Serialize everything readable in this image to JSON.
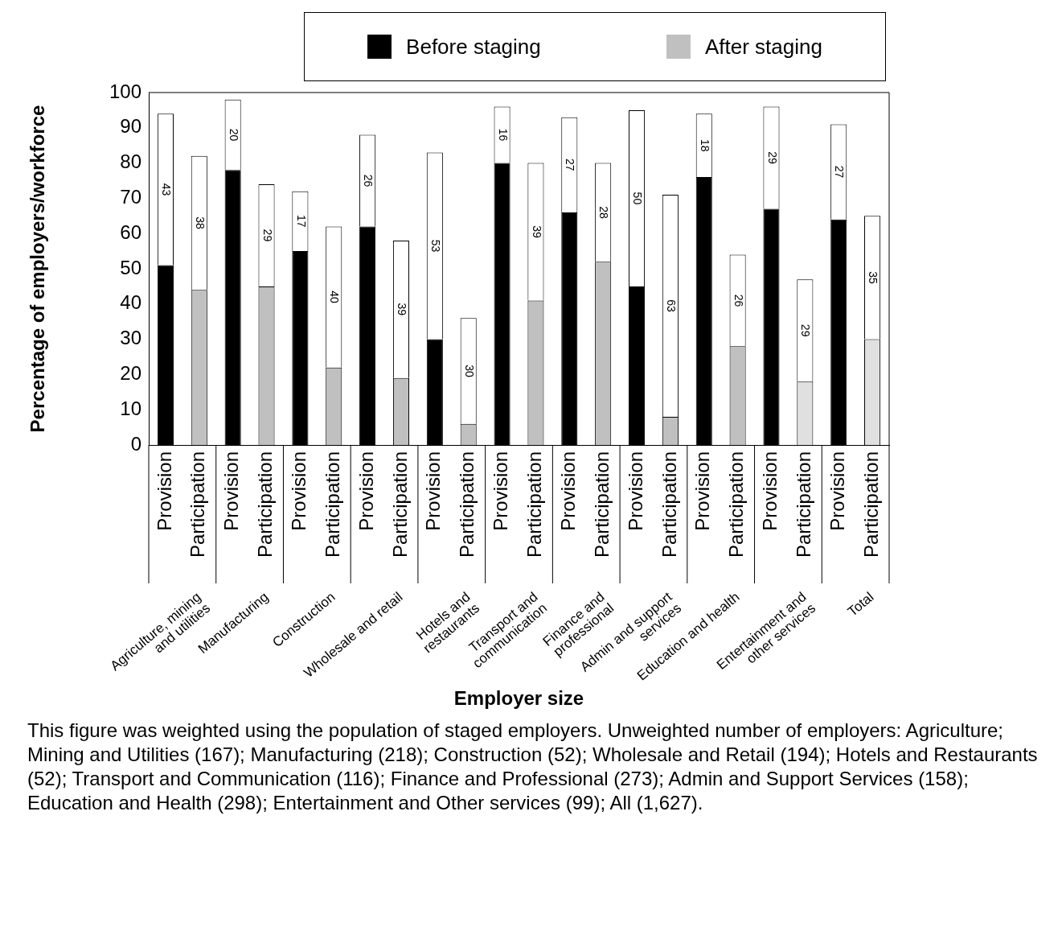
{
  "chart_data": {
    "type": "bar",
    "stacked": true,
    "categories": [
      "Provision",
      "Participation",
      "Provision",
      "Participation",
      "Provision",
      "Participation",
      "Provision",
      "Participation",
      "Provision",
      "Participation",
      "Provision",
      "Participation",
      "Provision",
      "Participation",
      "Provision",
      "Participation",
      "Provision",
      "Participation",
      "Provision",
      "Participation",
      "Provision",
      "Participation"
    ],
    "series": [
      {
        "name": "Before staging",
        "color": "#000000",
        "values": [
          51,
          null,
          78,
          null,
          55,
          null,
          62,
          null,
          30,
          null,
          80,
          null,
          66,
          null,
          45,
          null,
          76,
          null,
          67,
          null,
          64,
          null
        ]
      },
      {
        "name": "After staging",
        "color": "#c0c0c0",
        "colors": [
          "#c0c0c0",
          "#c0c0c0",
          "#c0c0c0",
          "#c0c0c0",
          "#c0c0c0",
          "#c0c0c0",
          "#c0c0c0",
          "#c0c0c0",
          "#c0c0c0",
          "#c0c0c0",
          "#c0c0c0",
          "#c0c0c0",
          "#c0c0c0",
          "#c0c0c0",
          "#c0c0c0",
          "#c0c0c0",
          "#c0c0c0",
          "#c0c0c0",
          "#c0c0c0",
          "#e0e0e0",
          "#c0c0c0",
          "#e0e0e0"
        ],
        "values": [
          null,
          44,
          null,
          45,
          null,
          22,
          null,
          19,
          null,
          6,
          null,
          41,
          null,
          52,
          null,
          8,
          null,
          28,
          null,
          18,
          null,
          30
        ]
      },
      {
        "color": "#ffffff",
        "values": [
          43,
          38,
          20,
          29,
          17,
          40,
          26,
          39,
          53,
          30,
          16,
          39,
          27,
          28,
          50,
          63,
          18,
          26,
          29,
          29,
          27,
          35
        ],
        "value_labels": [
          "43",
          "38",
          "20",
          "29",
          "17",
          "40",
          "26",
          "39",
          "53",
          "30",
          "16",
          "39",
          "27",
          "28",
          "50",
          "63",
          "18",
          "26",
          "29",
          "29",
          "27",
          "35"
        ]
      }
    ],
    "ylim": [
      0,
      100
    ],
    "yticks": [
      0,
      10,
      20,
      30,
      40,
      50,
      60,
      70,
      80,
      90,
      100
    ],
    "ylabel": "Percentage of employers/workforce",
    "legend": "top",
    "grid": false,
    "annotations": [
      "Agriculture, mining and utilities",
      "Manufacturing",
      "Construction",
      "Wholesale and retail",
      "Hotels and restaurants",
      "Transport and communication",
      "Finance and professional",
      "Admin and support services",
      "Education and health",
      "Entertainment and other services",
      "Total",
      "Employer size",
      "This figure was weighted using the population of staged employers. Unweighted number of employers: Agriculture; Mining and Utilities (167); Manufacturing (218); Construction (52); Wholesale and Retail (194); Hotels and Restaurants (52); Transport and Communication (116); Finance and Professional (273); Admin and Support Services (158); Education and Health (298); Entertainment and Other services (99); All (1,627)."
    ]
  }
}
